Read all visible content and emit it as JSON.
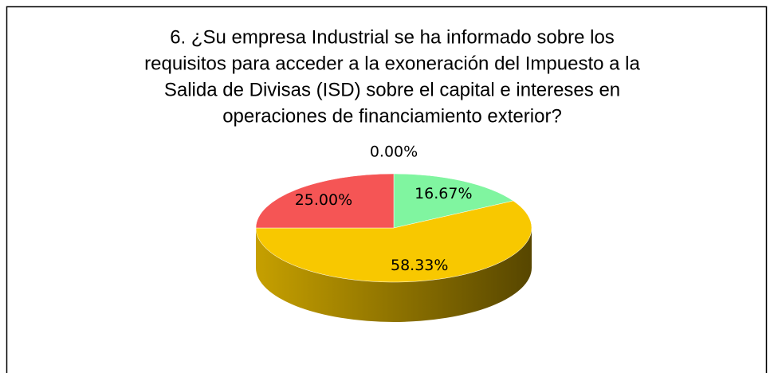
{
  "chart_data": {
    "type": "pie3d",
    "title": [
      "6. ¿Su empresa Industrial se ha informado sobre los",
      "requisitos para acceder a la exoneración del Impuesto a la",
      "Salida de Divisas (ISD) sobre el capital e intereses en",
      "operaciones de financiamiento exterior?"
    ],
    "values": [
      0,
      16.67,
      58.33,
      25
    ],
    "value_labels": [
      "0.00%",
      "16.67%",
      "58.33%",
      "25.00%"
    ],
    "colors": [
      "#4f81bd",
      "#80f5a0",
      "#f8c800",
      "#f55555"
    ]
  }
}
